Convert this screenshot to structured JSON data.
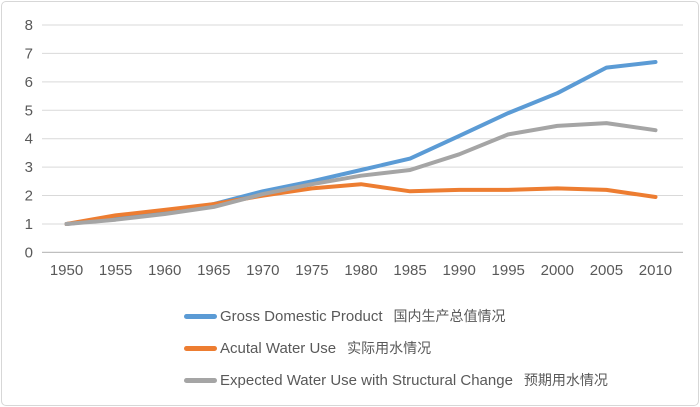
{
  "chart_data": {
    "type": "line",
    "title": "",
    "xlabel": "",
    "ylabel": "",
    "x": [
      1950,
      1955,
      1960,
      1965,
      1970,
      1975,
      1980,
      1985,
      1990,
      1995,
      2000,
      2005,
      2010
    ],
    "series": [
      {
        "name": "Gross Domestic Product",
        "name_cn": "国内生产总值情况",
        "color": "#5b9bd5",
        "values": [
          1.0,
          1.2,
          1.4,
          1.7,
          2.15,
          2.5,
          2.9,
          3.3,
          4.1,
          4.9,
          5.6,
          6.5,
          6.7
        ]
      },
      {
        "name": "Acutal Water Use",
        "name_cn": "实际用水情况",
        "color": "#ed7d31",
        "values": [
          1.0,
          1.3,
          1.5,
          1.7,
          2.0,
          2.25,
          2.4,
          2.15,
          2.2,
          2.2,
          2.25,
          2.2,
          1.95
        ]
      },
      {
        "name": "Expected Water Use with Structural Change",
        "name_cn": "预期用水情况",
        "color": "#a5a5a5",
        "values": [
          1.0,
          1.15,
          1.35,
          1.6,
          2.05,
          2.4,
          2.7,
          2.9,
          3.45,
          4.15,
          4.45,
          4.55,
          4.3
        ]
      }
    ],
    "ylim": [
      0,
      8
    ],
    "y_ticks": [
      0,
      1,
      2,
      3,
      4,
      5,
      6,
      7,
      8
    ],
    "grid": true,
    "legend_position": "bottom-left",
    "axis_text_color": "#595959",
    "gridline_color": "#d9d9d9",
    "axis_line_color": "#bfbfbf"
  }
}
